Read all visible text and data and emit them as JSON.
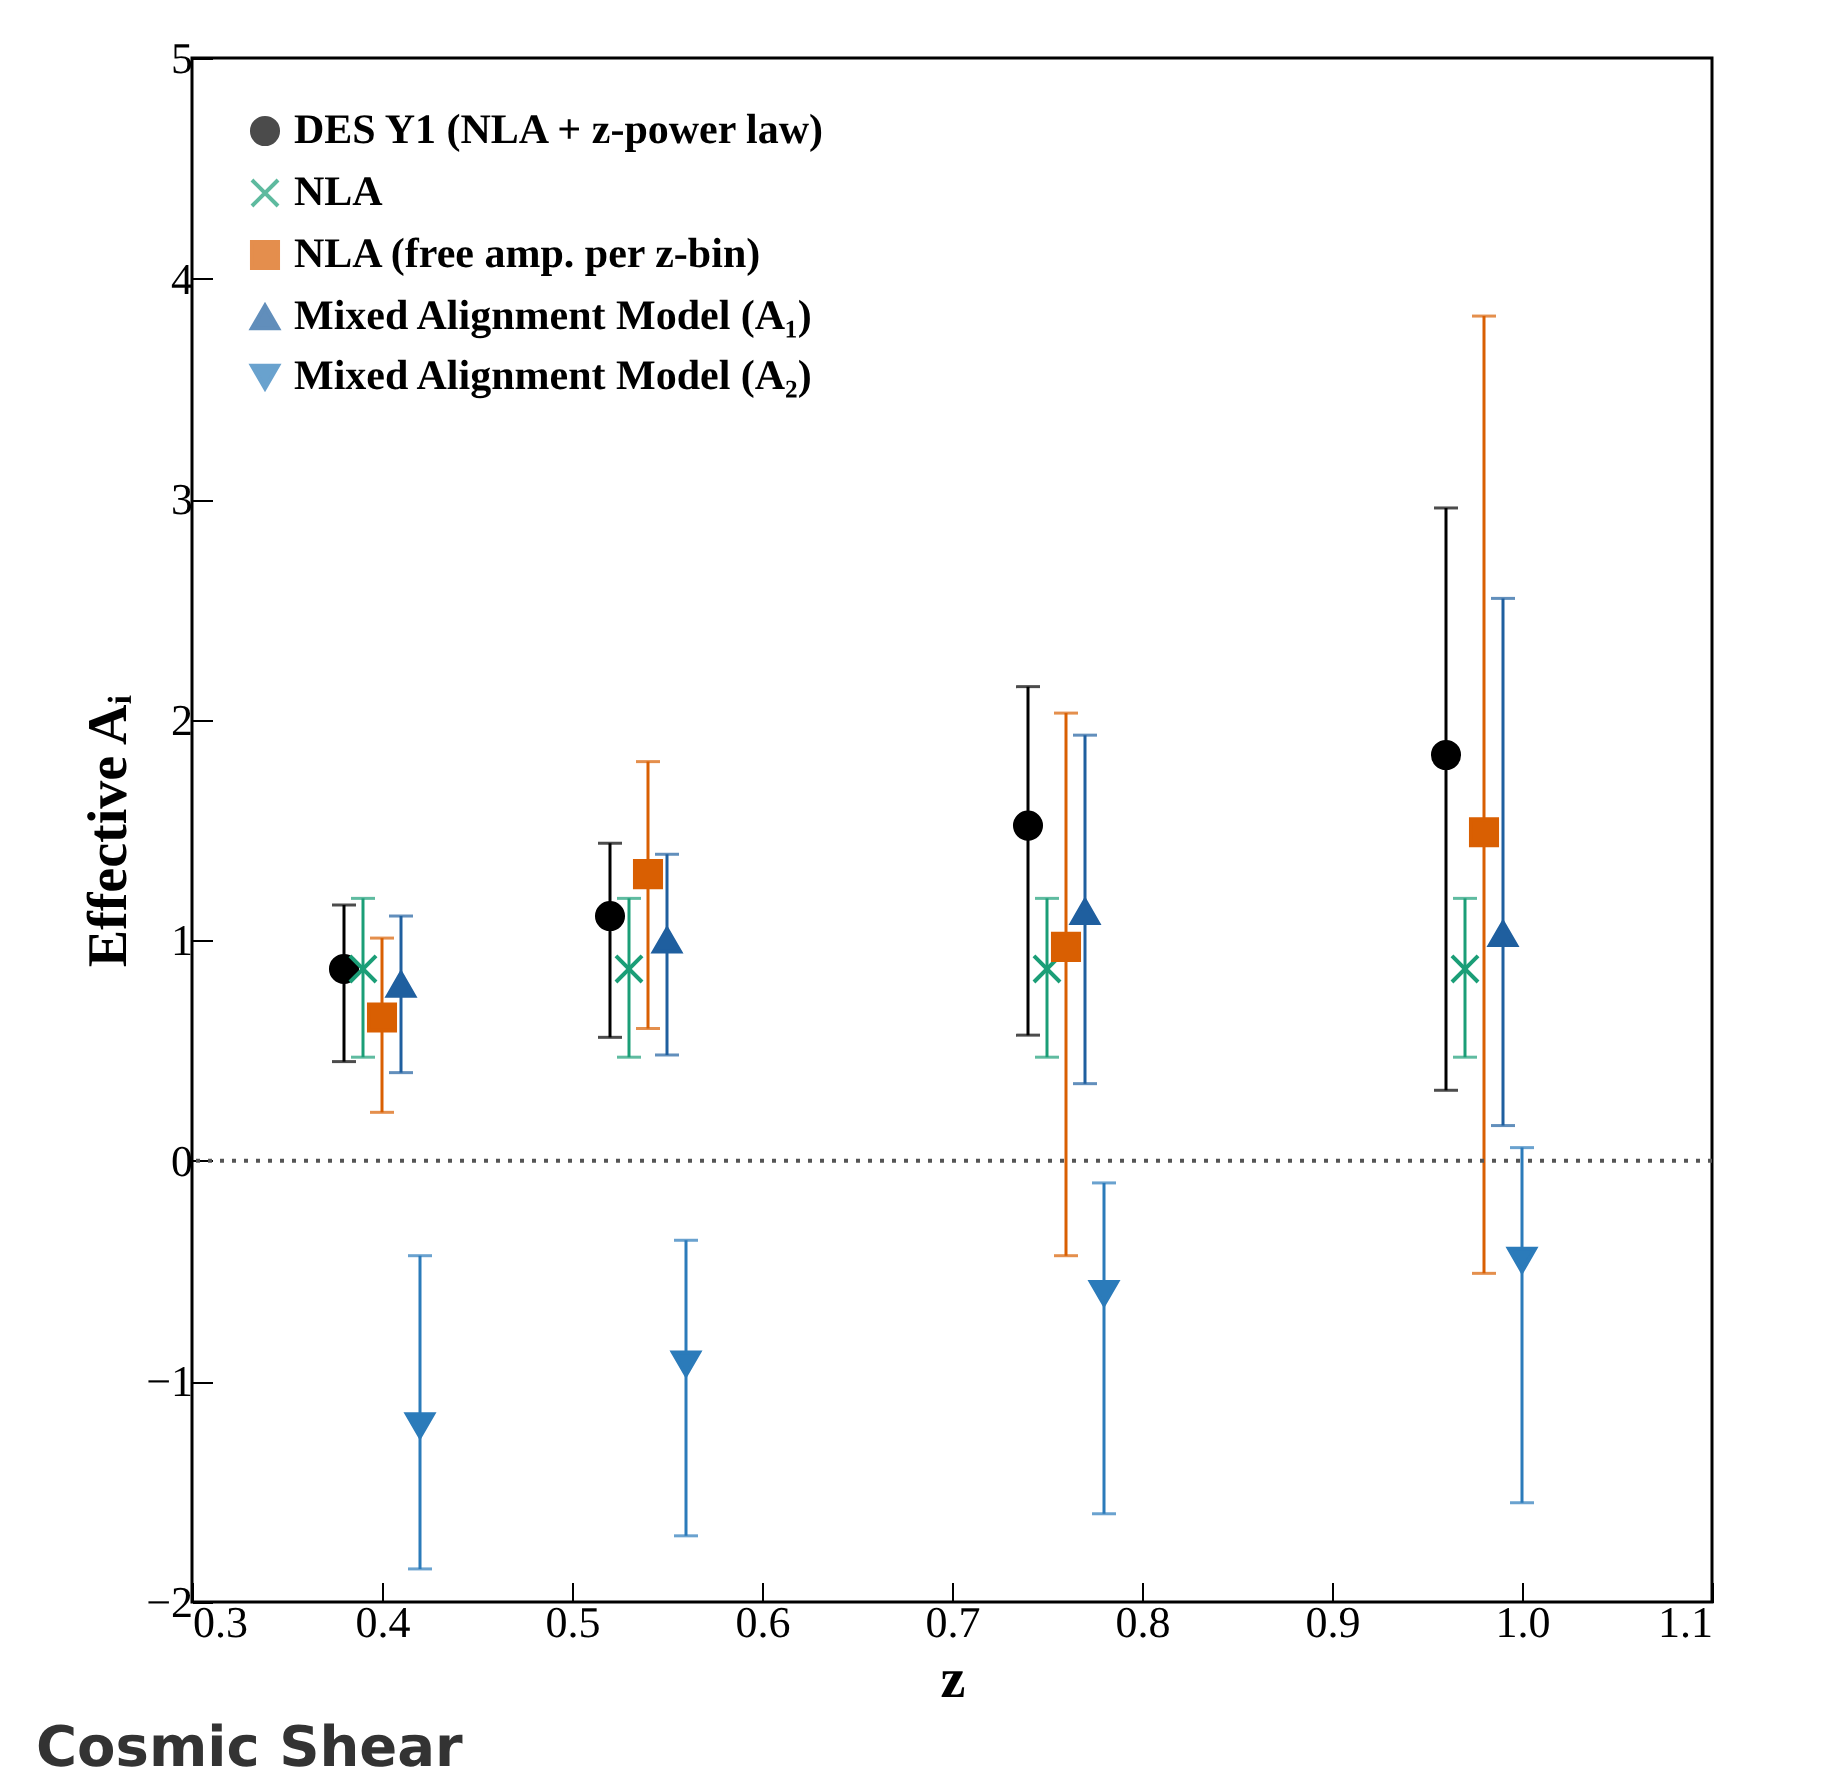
{
  "chart_data": {
    "type": "scatter",
    "xlabel": "z",
    "ylabel": "Effective Aᵢ",
    "xlim": [
      0.3,
      1.1
    ],
    "xticks": [
      0.3,
      0.4,
      0.5,
      0.6,
      0.7,
      0.8,
      0.9,
      {
        "value": 1,
        "label": "1.0"
      },
      1.1
    ],
    "ylim": [
      -2,
      5
    ],
    "yticks": [
      {
        "value": -2,
        "label": "−2"
      },
      {
        "value": -1,
        "label": "−1"
      },
      0,
      1,
      2,
      3,
      4,
      5
    ],
    "legend": "top left",
    "grid": false,
    "ref_lines": [
      {
        "axis": "y",
        "value": 0,
        "line_style": "dotted",
        "color": "#555555"
      }
    ],
    "annotations": [
      "Cosmic Shear"
    ],
    "series": [
      {
        "name": "DES Y1 (NLA + z-power law)",
        "color": "#000000",
        "marker": "circle",
        "x": [
          0.38,
          0.52,
          0.74,
          0.96
        ],
        "values": [
          0.87,
          1.11,
          1.52,
          1.84
        ],
        "errors": [
          [
            0.45,
            1.16
          ],
          [
            0.56,
            1.44
          ],
          [
            0.57,
            2.15
          ],
          [
            0.32,
            2.96
          ]
        ]
      },
      {
        "name": "NLA",
        "color": "#1b9e77",
        "marker": "cross",
        "x": [
          0.39,
          0.53,
          0.75,
          0.97
        ],
        "values": [
          0.87,
          0.87,
          0.87,
          0.87
        ],
        "errors": [
          [
            0.47,
            1.19
          ],
          [
            0.47,
            1.19
          ],
          [
            0.47,
            1.19
          ],
          [
            0.47,
            1.19
          ]
        ]
      },
      {
        "name": "NLA (free amp. per z-bin)",
        "color": "#d95f02",
        "marker": "square",
        "x": [
          0.4,
          0.54,
          0.76,
          0.98
        ],
        "values": [
          0.65,
          1.3,
          0.97,
          1.49
        ],
        "errors": [
          [
            0.22,
            1.01
          ],
          [
            0.6,
            1.81
          ],
          [
            -0.43,
            2.03
          ],
          [
            -0.51,
            3.83
          ]
        ]
      },
      {
        "name": "Mixed Alignment Model (A₁)",
        "color": "#1f5f9f",
        "marker": "triangle",
        "x": [
          0.41,
          0.55,
          0.77,
          0.99
        ],
        "values": [
          0.8,
          1.0,
          1.13,
          1.03
        ],
        "errors": [
          [
            0.4,
            1.11
          ],
          [
            0.48,
            1.39
          ],
          [
            0.35,
            1.93
          ],
          [
            0.16,
            2.55
          ]
        ]
      },
      {
        "name": "Mixed Alignment Model (A₂)",
        "color": "#2b7bba",
        "marker": "triangle-down",
        "x": [
          0.42,
          0.56,
          0.78,
          1.0
        ],
        "values": [
          -1.2,
          -0.92,
          -0.6,
          -0.45
        ],
        "errors": [
          [
            -1.85,
            -0.43
          ],
          [
            -1.7,
            -0.36
          ],
          [
            -1.6,
            -0.1
          ],
          [
            -1.55,
            0.06
          ]
        ]
      }
    ]
  }
}
